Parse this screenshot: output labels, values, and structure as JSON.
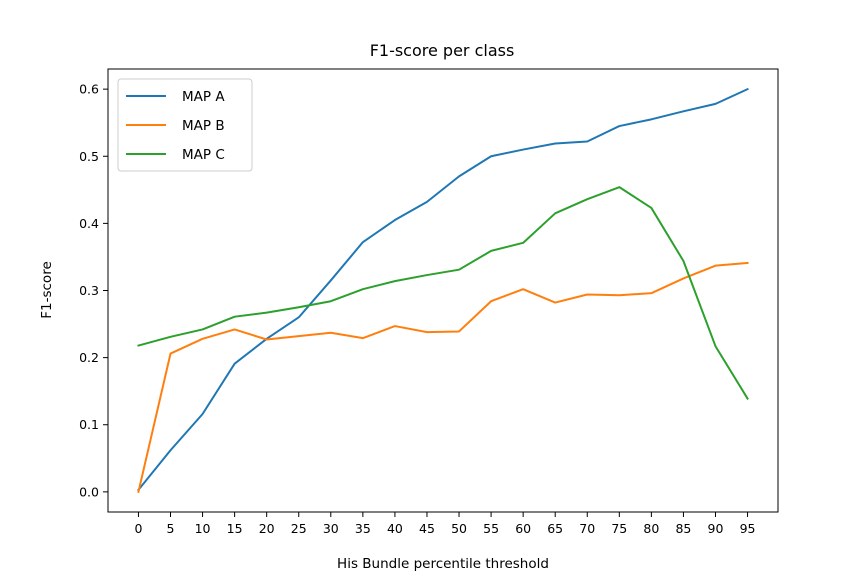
{
  "chart_data": {
    "type": "line",
    "title": "F1-score per class",
    "xlabel": "His Bundle percentile threshold",
    "ylabel": "F1-score",
    "x": [
      0,
      5,
      10,
      15,
      20,
      25,
      30,
      35,
      40,
      45,
      50,
      55,
      60,
      65,
      70,
      75,
      80,
      85,
      90,
      95
    ],
    "x_ticks": [
      "0",
      "5",
      "10",
      "15",
      "20",
      "25",
      "30",
      "35",
      "40",
      "45",
      "50",
      "55",
      "60",
      "65",
      "70",
      "75",
      "80",
      "85",
      "90",
      "95"
    ],
    "y_ticks": [
      "0.0",
      "0.1",
      "0.2",
      "0.3",
      "0.4",
      "0.5",
      "0.6"
    ],
    "xlim": [
      -4.75,
      99.75
    ],
    "ylim": [
      -0.03,
      0.63
    ],
    "grid": false,
    "legend_position": "top-left",
    "series": [
      {
        "name": "MAP A",
        "color": "#1f77b4",
        "values": [
          0.003,
          0.062,
          0.116,
          0.191,
          0.228,
          0.26,
          0.315,
          0.372,
          0.405,
          0.432,
          0.47,
          0.5,
          0.51,
          0.519,
          0.522,
          0.545,
          0.555,
          0.567,
          0.578,
          0.6
        ]
      },
      {
        "name": "MAP B",
        "color": "#ff7f0e",
        "values": [
          0.0,
          0.206,
          0.228,
          0.242,
          0.227,
          0.232,
          0.237,
          0.229,
          0.247,
          0.238,
          0.239,
          0.284,
          0.302,
          0.282,
          0.294,
          0.293,
          0.296,
          0.318,
          0.337,
          0.341
        ]
      },
      {
        "name": "MAP C",
        "color": "#2ca02c",
        "values": [
          0.218,
          0.231,
          0.242,
          0.261,
          0.267,
          0.275,
          0.284,
          0.302,
          0.314,
          0.323,
          0.331,
          0.359,
          0.371,
          0.415,
          0.436,
          0.454,
          0.423,
          0.344,
          0.217,
          0.139
        ]
      }
    ]
  }
}
